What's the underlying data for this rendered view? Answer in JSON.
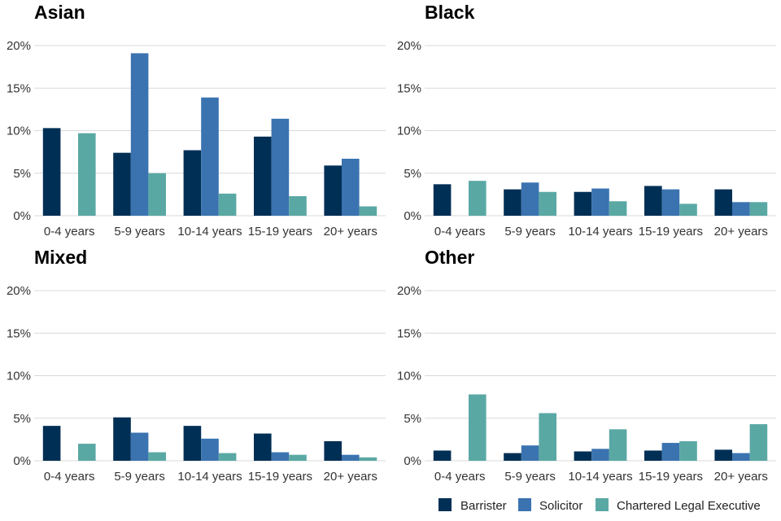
{
  "chart_data": {
    "type": "bar",
    "categories": [
      "0-4 years",
      "5-9 years",
      "10-14 years",
      "15-19 years",
      "20+ years"
    ],
    "y_ticks": [
      "0%",
      "5%",
      "10%",
      "15%",
      "20%"
    ],
    "ylim": [
      0,
      20
    ],
    "grid": true,
    "legend_position": "bottom-right",
    "legend": [
      {
        "name": "Barrister",
        "color": "#002f55"
      },
      {
        "name": "Solicitor",
        "color": "#3a73b0"
      },
      {
        "name": "Chartered Legal Executive",
        "color": "#5aa8a4"
      }
    ],
    "panels": [
      {
        "title": "Asian",
        "series": [
          {
            "name": "Barrister",
            "values": [
              10.3,
              7.4,
              7.7,
              9.3,
              5.9
            ]
          },
          {
            "name": "Solicitor",
            "values": [
              0,
              19.1,
              13.9,
              11.4,
              6.7
            ]
          },
          {
            "name": "Chartered Legal Executive",
            "values": [
              9.7,
              5.0,
              2.6,
              2.3,
              1.1
            ]
          }
        ]
      },
      {
        "title": "Black",
        "series": [
          {
            "name": "Barrister",
            "values": [
              3.7,
              3.1,
              2.8,
              3.5,
              3.1
            ]
          },
          {
            "name": "Solicitor",
            "values": [
              0,
              3.9,
              3.2,
              3.1,
              1.6
            ]
          },
          {
            "name": "Chartered Legal Executive",
            "values": [
              4.1,
              2.8,
              1.7,
              1.4,
              1.6
            ]
          }
        ]
      },
      {
        "title": "Mixed",
        "series": [
          {
            "name": "Barrister",
            "values": [
              4.1,
              5.1,
              4.1,
              3.2,
              2.3
            ]
          },
          {
            "name": "Solicitor",
            "values": [
              0,
              3.3,
              2.6,
              1.0,
              0.7
            ]
          },
          {
            "name": "Chartered Legal Executive",
            "values": [
              2.0,
              1.0,
              0.9,
              0.7,
              0.4
            ]
          }
        ]
      },
      {
        "title": "Other",
        "series": [
          {
            "name": "Barrister",
            "values": [
              1.2,
              0.9,
              1.1,
              1.2,
              1.3
            ]
          },
          {
            "name": "Solicitor",
            "values": [
              0,
              1.8,
              1.4,
              2.1,
              0.9
            ]
          },
          {
            "name": "Chartered Legal Executive",
            "values": [
              7.8,
              5.6,
              3.7,
              2.3,
              4.3
            ]
          }
        ]
      }
    ]
  }
}
